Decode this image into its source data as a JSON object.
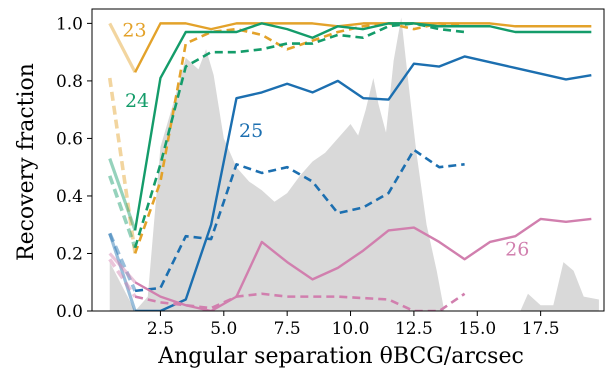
{
  "chart_data": {
    "type": "line",
    "title": "",
    "xlabel": "Angular separation θBCG/arcsec",
    "ylabel": "Recovery fraction",
    "xlim": [
      -0.2,
      20.0
    ],
    "ylim": [
      0.0,
      1.05
    ],
    "xticks": [
      2.5,
      5.0,
      7.5,
      10.0,
      12.5,
      15.0,
      17.5
    ],
    "xtick_labels": [
      "2.5",
      "5.0",
      "7.5",
      "10.0",
      "12.5",
      "15.0",
      "17.5"
    ],
    "yticks": [
      0.0,
      0.2,
      0.4,
      0.6,
      0.8,
      1.0
    ],
    "ytick_labels": [
      "0.0",
      "0.2",
      "0.4",
      "0.6",
      "0.8",
      "1.0"
    ],
    "grid": false,
    "legend": "none",
    "background_histogram": {
      "color": "#d9d9d9",
      "points": [
        [
          0.5,
          0.17
        ],
        [
          1.5,
          0.0
        ],
        [
          2.0,
          0.05
        ],
        [
          2.5,
          0.57
        ],
        [
          3.0,
          0.72
        ],
        [
          3.5,
          0.88
        ],
        [
          4.0,
          0.84
        ],
        [
          4.3,
          0.91
        ],
        [
          4.6,
          0.82
        ],
        [
          5.0,
          0.6
        ],
        [
          5.5,
          0.5
        ],
        [
          6.0,
          0.45
        ],
        [
          6.5,
          0.42
        ],
        [
          7.0,
          0.38
        ],
        [
          7.5,
          0.41
        ],
        [
          8.0,
          0.47
        ],
        [
          8.5,
          0.52
        ],
        [
          9.0,
          0.55
        ],
        [
          9.5,
          0.6
        ],
        [
          10.0,
          0.65
        ],
        [
          10.3,
          0.61
        ],
        [
          10.6,
          0.7
        ],
        [
          10.9,
          0.81
        ],
        [
          11.1,
          0.72
        ],
        [
          11.4,
          0.62
        ],
        [
          11.7,
          0.87
        ],
        [
          12.0,
          1.02
        ],
        [
          12.3,
          0.78
        ],
        [
          12.6,
          0.55
        ],
        [
          13.0,
          0.3
        ],
        [
          13.4,
          0.14
        ],
        [
          13.7,
          0.0
        ],
        [
          16.7,
          0.0
        ],
        [
          17.0,
          0.06
        ],
        [
          17.5,
          0.02
        ],
        [
          18.0,
          0.02
        ],
        [
          18.4,
          0.17
        ],
        [
          18.8,
          0.14
        ],
        [
          19.2,
          0.05
        ],
        [
          19.8,
          0.04
        ]
      ]
    },
    "series": [
      {
        "label": "23",
        "style": "solid",
        "color": "#e3a22a",
        "x": [
          0.5,
          1.5,
          2.5,
          3.5,
          4.5,
          5.5,
          6.5,
          7.5,
          8.5,
          9.5,
          10.5,
          11.5,
          12.5,
          13.5,
          14.5,
          15.5,
          16.5,
          17.5,
          18.5,
          19.5
        ],
        "y": [
          1.0,
          0.83,
          1.0,
          1.0,
          0.98,
          1.0,
          1.0,
          1.0,
          1.0,
          0.99,
          1.0,
          1.0,
          1.0,
          1.0,
          1.0,
          1.0,
          0.99,
          0.99,
          0.99,
          0.99
        ]
      },
      {
        "label": "",
        "style": "dashed",
        "color": "#e3a22a",
        "x": [
          0.5,
          1.5,
          2.5,
          3.5,
          4.5,
          5.5,
          6.5,
          7.5,
          8.5,
          9.5,
          10.5,
          11.5,
          12.5,
          13.5,
          14.5
        ],
        "y": [
          0.81,
          0.2,
          0.45,
          0.93,
          0.97,
          0.98,
          0.96,
          0.91,
          0.94,
          0.97,
          0.99,
          1.0,
          0.98,
          1.0,
          0.99
        ]
      },
      {
        "label": "24",
        "style": "solid",
        "color": "#149c6a",
        "x": [
          0.5,
          1.5,
          2.5,
          3.5,
          4.5,
          5.5,
          6.5,
          7.5,
          8.5,
          9.5,
          10.5,
          11.5,
          12.5,
          13.5,
          14.5,
          15.5,
          16.5,
          17.5,
          18.5,
          19.5
        ],
        "y": [
          0.53,
          0.28,
          0.81,
          0.97,
          0.97,
          0.97,
          1.0,
          0.98,
          0.95,
          0.99,
          0.98,
          1.0,
          1.0,
          0.99,
          0.99,
          0.99,
          0.97,
          0.97,
          0.97,
          0.97
        ]
      },
      {
        "label": "",
        "style": "dashed",
        "color": "#149c6a",
        "x": [
          0.5,
          1.5,
          2.5,
          3.5,
          4.5,
          5.5,
          6.5,
          7.5,
          8.5,
          9.5,
          10.5,
          11.5,
          12.5,
          13.5,
          14.5
        ],
        "y": [
          0.47,
          0.22,
          0.51,
          0.85,
          0.9,
          0.9,
          0.91,
          0.93,
          0.93,
          0.96,
          0.95,
          0.99,
          1.0,
          0.98,
          0.97
        ]
      },
      {
        "label": "25",
        "style": "solid",
        "color": "#1c6fb0",
        "x": [
          0.5,
          1.5,
          2.5,
          3.5,
          4.5,
          5.5,
          6.5,
          7.5,
          8.5,
          9.5,
          10.5,
          11.5,
          12.5,
          13.5,
          14.5,
          15.5,
          16.5,
          17.5,
          18.5,
          19.5
        ],
        "y": [
          0.27,
          0.0,
          0.0,
          0.04,
          0.3,
          0.74,
          0.76,
          0.79,
          0.76,
          0.8,
          0.74,
          0.735,
          0.86,
          0.85,
          0.885,
          0.865,
          0.845,
          0.825,
          0.805,
          0.82
        ]
      },
      {
        "label": "",
        "style": "dashed",
        "color": "#1c6fb0",
        "x": [
          0.5,
          1.5,
          2.5,
          3.5,
          4.5,
          5.5,
          6.5,
          7.5,
          8.5,
          9.5,
          10.5,
          11.5,
          12.5,
          13.5,
          14.5
        ],
        "y": [
          0.27,
          0.07,
          0.08,
          0.26,
          0.25,
          0.51,
          0.48,
          0.5,
          0.45,
          0.34,
          0.36,
          0.41,
          0.56,
          0.5,
          0.51
        ]
      },
      {
        "label": "26",
        "style": "solid",
        "color": "#d17fae",
        "x": [
          0.5,
          1.5,
          2.5,
          3.5,
          4.5,
          5.5,
          6.5,
          7.5,
          8.5,
          9.5,
          10.5,
          11.5,
          12.5,
          13.5,
          14.5,
          15.5,
          16.5,
          17.5,
          18.5,
          19.5
        ],
        "y": [
          0.2,
          0.1,
          0.05,
          0.02,
          0.0,
          0.05,
          0.24,
          0.17,
          0.11,
          0.15,
          0.21,
          0.28,
          0.29,
          0.24,
          0.18,
          0.24,
          0.26,
          0.32,
          0.31,
          0.32
        ]
      },
      {
        "label": "",
        "style": "dashed",
        "color": "#d17fae",
        "x": [
          0.5,
          1.5,
          2.5,
          3.5,
          4.5,
          5.5,
          6.5,
          7.5,
          8.5,
          9.5,
          10.5,
          11.5,
          12.5,
          13.5,
          14.5
        ],
        "y": [
          0.18,
          0.05,
          0.03,
          0.02,
          0.01,
          0.05,
          0.06,
          0.05,
          0.05,
          0.05,
          0.045,
          0.04,
          0.0,
          0.0,
          0.06
        ]
      }
    ]
  }
}
